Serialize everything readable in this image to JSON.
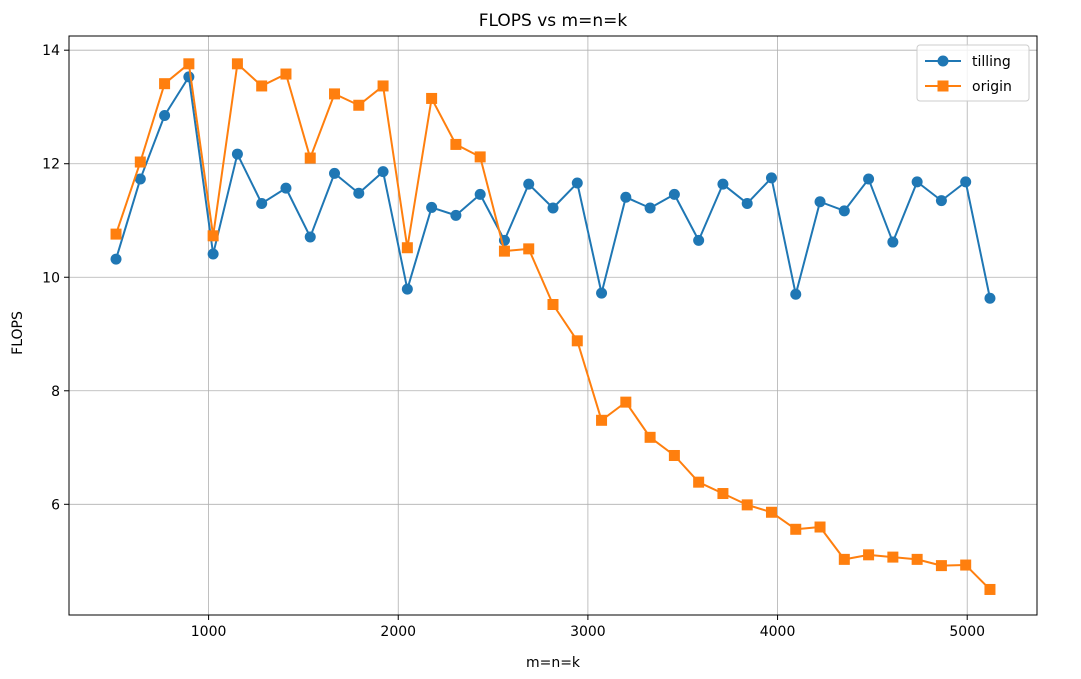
{
  "chart_data": {
    "type": "line",
    "title": "FLOPS vs m=n=k",
    "xlabel": "m=n=k",
    "ylabel": "FLOPS",
    "xlim": [
      264,
      5368
    ],
    "ylim": [
      4.05,
      14.25
    ],
    "xticks": [
      1000,
      2000,
      3000,
      4000,
      5000
    ],
    "yticks": [
      6,
      8,
      10,
      12,
      14
    ],
    "grid": true,
    "legend_position": "top-right",
    "x": [
      512,
      640,
      768,
      896,
      1024,
      1152,
      1280,
      1408,
      1536,
      1664,
      1792,
      1920,
      2048,
      2176,
      2304,
      2432,
      2560,
      2688,
      2816,
      2944,
      3072,
      3200,
      3328,
      3456,
      3584,
      3712,
      3840,
      3968,
      4096,
      4224,
      4352,
      4480,
      4608,
      4736,
      4864,
      4992,
      5120
    ],
    "series": [
      {
        "name": "tilling",
        "color": "#1f77b4",
        "marker": "circle",
        "values": [
          10.32,
          11.73,
          12.85,
          13.53,
          10.41,
          12.17,
          11.3,
          11.57,
          10.71,
          11.83,
          11.48,
          11.86,
          9.79,
          11.23,
          11.09,
          11.46,
          10.65,
          11.64,
          11.22,
          11.66,
          9.72,
          11.41,
          11.22,
          11.46,
          10.65,
          11.64,
          11.3,
          11.75,
          9.7,
          11.33,
          11.17,
          11.73,
          10.62,
          11.68,
          11.35,
          11.68,
          9.63
        ]
      },
      {
        "name": "origin",
        "color": "#ff7f0e",
        "marker": "square",
        "values": [
          10.76,
          12.03,
          13.41,
          13.76,
          10.73,
          13.76,
          13.37,
          13.58,
          12.1,
          13.23,
          13.03,
          13.37,
          10.52,
          13.15,
          12.34,
          12.12,
          10.46,
          10.5,
          9.52,
          8.88,
          7.48,
          7.8,
          7.18,
          6.86,
          6.39,
          6.19,
          5.99,
          5.86,
          5.56,
          5.6,
          5.03,
          5.11,
          5.07,
          5.03,
          4.92,
          4.93,
          4.5
        ]
      }
    ]
  }
}
